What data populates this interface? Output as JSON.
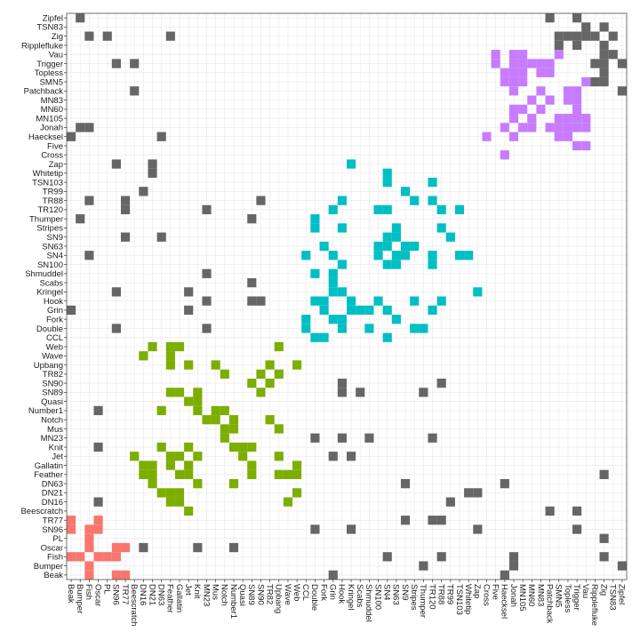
{
  "chart_data": {
    "type": "heatmap",
    "title": "",
    "xlabel": "",
    "ylabel": "",
    "grid": true,
    "legend": "none",
    "labels": [
      "Beak",
      "Bumper",
      "Fish",
      "Oscar",
      "PL",
      "SN96",
      "TR77",
      "Beescratch",
      "DN16",
      "DN21",
      "DN63",
      "Feather",
      "Gallatin",
      "Jet",
      "Knit",
      "MN23",
      "Mus",
      "Notch",
      "Number1",
      "Quasi",
      "SN89",
      "SN90",
      "TR82",
      "Upbang",
      "Wave",
      "Web",
      "CCL",
      "Double",
      "Fork",
      "Grin",
      "Hook",
      "Kringel",
      "Scabs",
      "Shmuddel",
      "SN100",
      "SN4",
      "SN63",
      "SN9",
      "Stripes",
      "Thumper",
      "TR120",
      "TR88",
      "TR99",
      "TSN103",
      "Whitetip",
      "Zap",
      "Cross",
      "Five",
      "Haecksel",
      "Jonah",
      "MN105",
      "MN60",
      "MN83",
      "Patchback",
      "SMN5",
      "Topless",
      "Trigger",
      "Vau",
      "Ripplefluke",
      "Zig",
      "TSN83",
      "Zipfel"
    ],
    "colors": {
      "other": "#666666",
      "group1": "#f8766d",
      "group2": "#7cae00",
      "group3": "#00bfc4",
      "group4": "#c77cff"
    },
    "groups": [
      {
        "key": "group1",
        "members": [
          "Beak",
          "Bumper",
          "Fish",
          "Oscar",
          "PL",
          "SN96",
          "TR77"
        ]
      },
      {
        "key": "group2",
        "members": [
          "Beescratch",
          "DN16",
          "DN21",
          "DN63",
          "Feather",
          "Gallatin",
          "Jet",
          "Knit",
          "MN23",
          "Mus",
          "Notch",
          "Number1",
          "Quasi",
          "SN89",
          "SN90",
          "TR82",
          "Upbang",
          "Wave",
          "Web"
        ]
      },
      {
        "key": "group3",
        "members": [
          "CCL",
          "Double",
          "Fork",
          "Grin",
          "Hook",
          "Kringel",
          "Scabs",
          "Shmuddel",
          "SN100",
          "SN4",
          "SN63",
          "SN9",
          "Stripes",
          "Thumper",
          "TR120",
          "TR88",
          "TR99",
          "TSN103",
          "Whitetip",
          "Zap"
        ]
      },
      {
        "key": "group4",
        "members": [
          "Cross",
          "Five",
          "Haecksel",
          "Jonah",
          "MN105",
          "MN60",
          "MN83",
          "Patchback",
          "SMN5",
          "Topless",
          "Trigger",
          "Vau"
        ]
      }
    ],
    "edges": [
      [
        "Beak",
        "Fish"
      ],
      [
        "Beak",
        "Grin"
      ],
      [
        "Beak",
        "Haecksel"
      ],
      [
        "Beak",
        "SN96"
      ],
      [
        "Beak",
        "TR77"
      ],
      [
        "Bumper",
        "Fish"
      ],
      [
        "Bumper",
        "Jonah"
      ],
      [
        "Bumper",
        "Thumper"
      ],
      [
        "Bumper",
        "Zipfel"
      ],
      [
        "Fish",
        "Oscar"
      ],
      [
        "Fish",
        "PL"
      ],
      [
        "Fish",
        "SN96"
      ],
      [
        "Fish",
        "Jonah"
      ],
      [
        "Fish",
        "SN4"
      ],
      [
        "Fish",
        "Zig"
      ],
      [
        "Fish",
        "TR88"
      ],
      [
        "Oscar",
        "SN96"
      ],
      [
        "Oscar",
        "TR77"
      ],
      [
        "Oscar",
        "Knit"
      ],
      [
        "Oscar",
        "DN16"
      ],
      [
        "Oscar",
        "Number1"
      ],
      [
        "SN96",
        "Double"
      ],
      [
        "SN96",
        "Kringel"
      ],
      [
        "SN96",
        "Zap"
      ],
      [
        "SN96",
        "Trigger"
      ],
      [
        "TR77",
        "TR120"
      ],
      [
        "TR77",
        "TR88"
      ],
      [
        "TR77",
        "SN9"
      ],
      [
        "PL",
        "Zig"
      ],
      [
        "Beescratch",
        "Patchback"
      ],
      [
        "Beescratch",
        "Trigger"
      ],
      [
        "DN16",
        "Feather"
      ],
      [
        "DN16",
        "Wave"
      ],
      [
        "DN16",
        "Gallatin"
      ],
      [
        "DN16",
        "TR99"
      ],
      [
        "DN21",
        "DN63"
      ],
      [
        "DN21",
        "Feather"
      ],
      [
        "DN21",
        "Gallatin"
      ],
      [
        "DN21",
        "Web"
      ],
      [
        "DN21",
        "Whitetip"
      ],
      [
        "DN21",
        "Zap"
      ],
      [
        "DN63",
        "Knit"
      ],
      [
        "DN63",
        "Number1"
      ],
      [
        "DN63",
        "SN9"
      ],
      [
        "DN63",
        "Haecksel"
      ],
      [
        "Feather",
        "Gallatin"
      ],
      [
        "Feather",
        "Jet"
      ],
      [
        "Feather",
        "Upbang"
      ],
      [
        "Feather",
        "Wave"
      ],
      [
        "Feather",
        "Web"
      ],
      [
        "Feather",
        "SN89"
      ],
      [
        "Feather",
        "Zig"
      ],
      [
        "Gallatin",
        "Jet"
      ],
      [
        "Gallatin",
        "SN89"
      ],
      [
        "Gallatin",
        "Web"
      ],
      [
        "Jet",
        "Knit"
      ],
      [
        "Jet",
        "Beescratch"
      ],
      [
        "Jet",
        "Kringel"
      ],
      [
        "Jet",
        "Quasi"
      ],
      [
        "Jet",
        "Upbang"
      ],
      [
        "Jet",
        "Grin"
      ],
      [
        "Knit",
        "Number1"
      ],
      [
        "Knit",
        "Quasi"
      ],
      [
        "Knit",
        "SN89"
      ],
      [
        "MN23",
        "Notch"
      ],
      [
        "MN23",
        "TR120"
      ],
      [
        "MN23",
        "Double"
      ],
      [
        "MN23",
        "Hook"
      ],
      [
        "MN23",
        "Shmuddel"
      ],
      [
        "Mus",
        "Notch"
      ],
      [
        "Mus",
        "Number1"
      ],
      [
        "Mus",
        "Upbang"
      ],
      [
        "Notch",
        "Number1"
      ],
      [
        "Notch",
        "TR82"
      ],
      [
        "SN89",
        "SN90"
      ],
      [
        "SN89",
        "Hook"
      ],
      [
        "SN89",
        "Scabs"
      ],
      [
        "SN89",
        "Thumper"
      ],
      [
        "SN90",
        "TR82"
      ],
      [
        "SN90",
        "TR88"
      ],
      [
        "SN90",
        "Hook"
      ],
      [
        "TR82",
        "Upbang"
      ],
      [
        "Upbang",
        "Web"
      ],
      [
        "CCL",
        "Double"
      ],
      [
        "CCL",
        "Fork"
      ],
      [
        "CCL",
        "SN4"
      ],
      [
        "Double",
        "Hook"
      ],
      [
        "Double",
        "Shmuddel"
      ],
      [
        "Double",
        "Stripes"
      ],
      [
        "Double",
        "Thumper"
      ],
      [
        "Fork",
        "Grin"
      ],
      [
        "Fork",
        "Hook"
      ],
      [
        "Fork",
        "SN63"
      ],
      [
        "Grin",
        "Kringel"
      ],
      [
        "Grin",
        "Scabs"
      ],
      [
        "Grin",
        "Shmuddel"
      ],
      [
        "Grin",
        "SN4"
      ],
      [
        "Grin",
        "TR120"
      ],
      [
        "Hook",
        "Kringel"
      ],
      [
        "Hook",
        "SN100"
      ],
      [
        "Hook",
        "Stripes"
      ],
      [
        "Hook",
        "TR88"
      ],
      [
        "Kringel",
        "Zap"
      ],
      [
        "SN100",
        "SN4"
      ],
      [
        "SN100",
        "SN63"
      ],
      [
        "SN100",
        "TR120"
      ],
      [
        "SN4",
        "SN63"
      ],
      [
        "SN4",
        "SN9"
      ],
      [
        "SN4",
        "TR120"
      ],
      [
        "SN4",
        "TSN103"
      ],
      [
        "SN4",
        "Whitetip"
      ],
      [
        "SN63",
        "SN9"
      ],
      [
        "SN63",
        "Stripes"
      ],
      [
        "SN9",
        "TR99"
      ],
      [
        "Stripes",
        "TR88"
      ],
      [
        "TR120",
        "TR88"
      ],
      [
        "TR120",
        "TSN103"
      ],
      [
        "Cross",
        "Haecksel"
      ],
      [
        "Five",
        "Trigger"
      ],
      [
        "Five",
        "Vau"
      ],
      [
        "Haecksel",
        "Jonah"
      ],
      [
        "Haecksel",
        "SMN5"
      ],
      [
        "Haecksel",
        "Topless"
      ],
      [
        "Jonah",
        "MN105"
      ],
      [
        "Jonah",
        "MN60"
      ],
      [
        "Jonah",
        "Patchback"
      ],
      [
        "Jonah",
        "SMN5"
      ],
      [
        "Jonah",
        "Topless"
      ],
      [
        "Jonah",
        "Trigger"
      ],
      [
        "Jonah",
        "Vau"
      ],
      [
        "MN105",
        "MN60"
      ],
      [
        "MN105",
        "SMN5"
      ],
      [
        "MN105",
        "Topless"
      ],
      [
        "MN105",
        "Trigger"
      ],
      [
        "MN105",
        "Vau"
      ],
      [
        "MN60",
        "MN83"
      ],
      [
        "MN60",
        "Trigger"
      ],
      [
        "MN83",
        "Patchback"
      ],
      [
        "MN83",
        "Topless"
      ],
      [
        "MN83",
        "Trigger"
      ],
      [
        "Patchback",
        "Trigger"
      ],
      [
        "Patchback",
        "Topless"
      ],
      [
        "SMN5",
        "Zig"
      ],
      [
        "SMN5",
        "Vau"
      ],
      [
        "SMN5",
        "Ripplefluke"
      ],
      [
        "Topless",
        "Zig"
      ],
      [
        "Trigger",
        "Zig"
      ],
      [
        "Trigger",
        "Ripplefluke"
      ],
      [
        "Vau",
        "TSN83"
      ],
      [
        "Vau",
        "Zig"
      ],
      [
        "Ripplefluke",
        "Zig"
      ],
      [
        "TSN83",
        "Zig"
      ],
      [
        "Zipfel",
        "Patchback"
      ],
      [
        "Zipfel",
        "Trigger"
      ]
    ]
  }
}
